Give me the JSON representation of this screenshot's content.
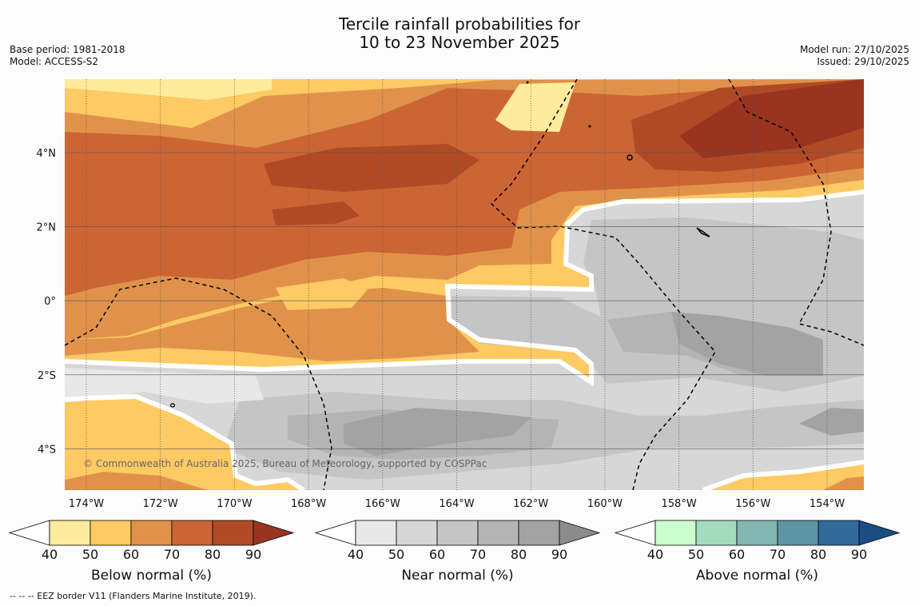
{
  "header": {
    "title_line1": "Tercile rainfall probabilities for",
    "title_line2": "10 to 23 November 2025",
    "base_period": "Base period: 1981-2018",
    "model": "Model: ACCESS-S2",
    "model_run": "Model run: 27/10/2025",
    "issued": "Issued: 29/10/2025"
  },
  "map": {
    "lon_labels": [
      "174°W",
      "172°W",
      "170°W",
      "168°W",
      "166°W",
      "164°W",
      "162°W",
      "160°W",
      "158°W",
      "156°W",
      "154°W"
    ],
    "lat_labels": [
      "4°N",
      "2°N",
      "0°",
      "2°S",
      "4°S"
    ],
    "copyright": "© Commonwealth of Australia 2025, Bureau of Meteorology, supported by COSPPac"
  },
  "legends": [
    {
      "label": "Below normal (%)",
      "ticks": [
        "40",
        "50",
        "60",
        "70",
        "80",
        "90"
      ],
      "colors": [
        "#ffeb9c",
        "#fdca63",
        "#e0924a",
        "#cc6534",
        "#b04a26",
        "#983420"
      ]
    },
    {
      "label": "Near normal (%)",
      "ticks": [
        "40",
        "50",
        "60",
        "70",
        "80",
        "90"
      ],
      "colors": [
        "#e8e8e8",
        "#d7d7d7",
        "#c5c5c5",
        "#b4b4b4",
        "#a3a3a3",
        "#8c8c8c"
      ]
    },
    {
      "label": "Above normal (%)",
      "ticks": [
        "40",
        "50",
        "60",
        "70",
        "80",
        "90"
      ],
      "colors": [
        "#ccffcc",
        "#a3dbbf",
        "#82b7b3",
        "#5e95a5",
        "#336a9c",
        "#1a4d84"
      ]
    }
  ],
  "footnote": "--  --  -- EEZ border V11 (Flanders Marine Institute, 2019)."
}
